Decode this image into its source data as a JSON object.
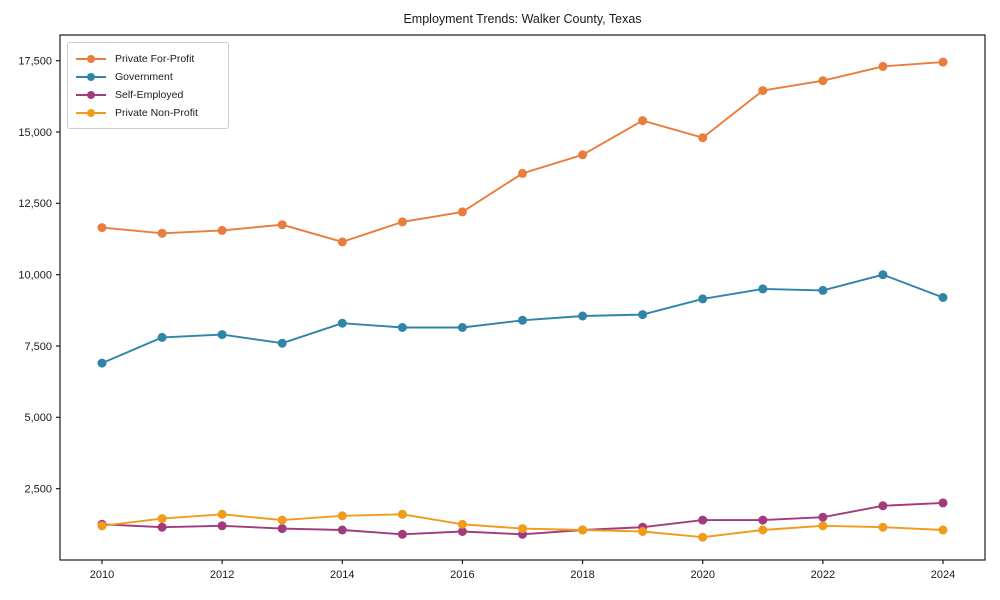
{
  "chart_data": {
    "type": "line",
    "title": "Employment Trends: Walker County, Texas",
    "xlabel": "",
    "ylabel": "",
    "x": [
      2010,
      2011,
      2012,
      2013,
      2014,
      2015,
      2016,
      2017,
      2018,
      2019,
      2020,
      2021,
      2022,
      2023,
      2024
    ],
    "series": [
      {
        "name": "Private For-Profit",
        "color": "#e87d3c",
        "values": [
          11650,
          11450,
          11550,
          11750,
          11150,
          11850,
          12200,
          13550,
          14200,
          15400,
          14800,
          16450,
          16800,
          17300,
          17450
        ]
      },
      {
        "name": "Government",
        "color": "#2f84a8",
        "values": [
          6900,
          7800,
          7900,
          7600,
          8300,
          8150,
          8150,
          8400,
          8550,
          8600,
          9150,
          9500,
          9450,
          10000,
          9200
        ]
      },
      {
        "name": "Self-Employed",
        "color": "#a23a80",
        "values": [
          1250,
          1150,
          1200,
          1100,
          1050,
          900,
          1000,
          900,
          1050,
          1150,
          1400,
          1400,
          1500,
          1900,
          2000
        ]
      },
      {
        "name": "Private Non-Profit",
        "color": "#f09c1a",
        "values": [
          1200,
          1450,
          1600,
          1400,
          1550,
          1600,
          1250,
          1100,
          1050,
          1000,
          800,
          1050,
          1200,
          1150,
          1050
        ]
      }
    ],
    "xticks": [
      2010,
      2012,
      2014,
      2016,
      2018,
      2020,
      2022,
      2024
    ],
    "yticks": [
      2500,
      5000,
      7500,
      10000,
      12500,
      15000,
      17500
    ],
    "ytick_labels": [
      "2,500",
      "5,000",
      "7,500",
      "10,000",
      "12,500",
      "15,000",
      "17,500"
    ],
    "ylim": [
      0,
      18400
    ],
    "xlim_years": [
      2010,
      2024
    ],
    "grid": false,
    "legend_position": "upper-left",
    "axis_color": "#1a1a1a",
    "background": "#ffffff"
  }
}
